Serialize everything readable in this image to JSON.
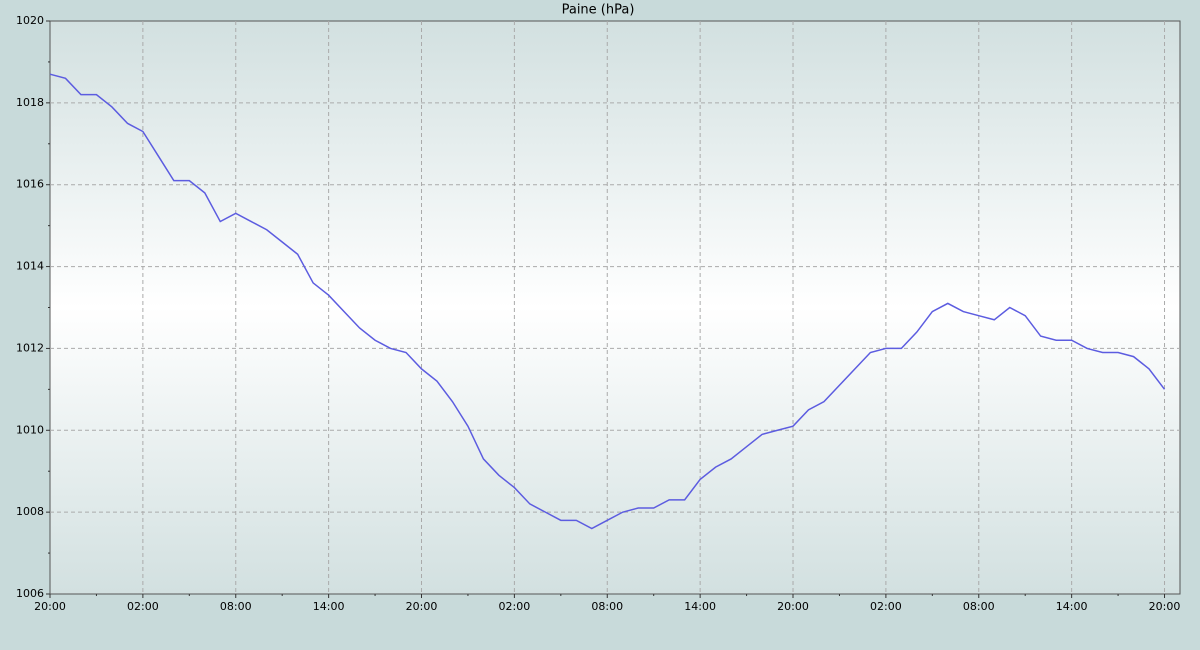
{
  "chart_data": {
    "type": "line",
    "title": "Paine (hPa)",
    "x": [
      0,
      1,
      2,
      3,
      4,
      5,
      6,
      7,
      8,
      9,
      10,
      11,
      12,
      13,
      14,
      15,
      16,
      17,
      18,
      19,
      20,
      21,
      22,
      23,
      24,
      25,
      26,
      27,
      28,
      29,
      30,
      31,
      32,
      33,
      34,
      35,
      36,
      37,
      38,
      39,
      40,
      41,
      42,
      43,
      44,
      45,
      46,
      47,
      48,
      49,
      50,
      51,
      52,
      53,
      54,
      55,
      56,
      57,
      58,
      59,
      60,
      61,
      62,
      63,
      64,
      65,
      66,
      67,
      68,
      69,
      70,
      71,
      72
    ],
    "series": [
      {
        "name": "Paine",
        "color": "#5c5ce0",
        "values": [
          1018.7,
          1018.6,
          1018.2,
          1018.2,
          1017.9,
          1017.5,
          1017.3,
          1016.7,
          1016.1,
          1016.1,
          1015.8,
          1015.1,
          1015.3,
          1015.1,
          1014.9,
          1014.6,
          1014.3,
          1013.6,
          1013.3,
          1012.9,
          1012.5,
          1012.2,
          1012.0,
          1011.9,
          1011.5,
          1011.2,
          1010.7,
          1010.1,
          1009.3,
          1008.9,
          1008.6,
          1008.2,
          1008.0,
          1007.8,
          1007.8,
          1007.6,
          1007.8,
          1008.0,
          1008.1,
          1008.1,
          1008.3,
          1008.3,
          1008.8,
          1009.1,
          1009.3,
          1009.6,
          1009.9,
          1010.0,
          1010.1,
          1010.5,
          1010.7,
          1011.1,
          1011.5,
          1011.9,
          1012.0,
          1012.0,
          1012.4,
          1012.9,
          1013.1,
          1012.9,
          1012.8,
          1012.7,
          1013.0,
          1012.8,
          1012.3,
          1012.2,
          1012.2,
          1012.0,
          1011.9,
          1011.9,
          1011.8,
          1011.5,
          1011.0
        ]
      }
    ],
    "xlim": [
      0,
      73
    ],
    "xticks": [
      {
        "value": 0,
        "label": "20:00"
      },
      {
        "value": 6,
        "label": "02:00"
      },
      {
        "value": 12,
        "label": "08:00"
      },
      {
        "value": 18,
        "label": "14:00"
      },
      {
        "value": 24,
        "label": "20:00"
      },
      {
        "value": 30,
        "label": "02:00"
      },
      {
        "value": 36,
        "label": "08:00"
      },
      {
        "value": 42,
        "label": "14:00"
      },
      {
        "value": 48,
        "label": "20:00"
      },
      {
        "value": 54,
        "label": "02:00"
      },
      {
        "value": 60,
        "label": "08:00"
      },
      {
        "value": 66,
        "label": "14:00"
      },
      {
        "value": 72,
        "label": "20:00"
      }
    ],
    "ylim": [
      1006,
      1020
    ],
    "yticks": [
      1006,
      1008,
      1010,
      1012,
      1014,
      1016,
      1018,
      1020
    ],
    "grid": true
  }
}
